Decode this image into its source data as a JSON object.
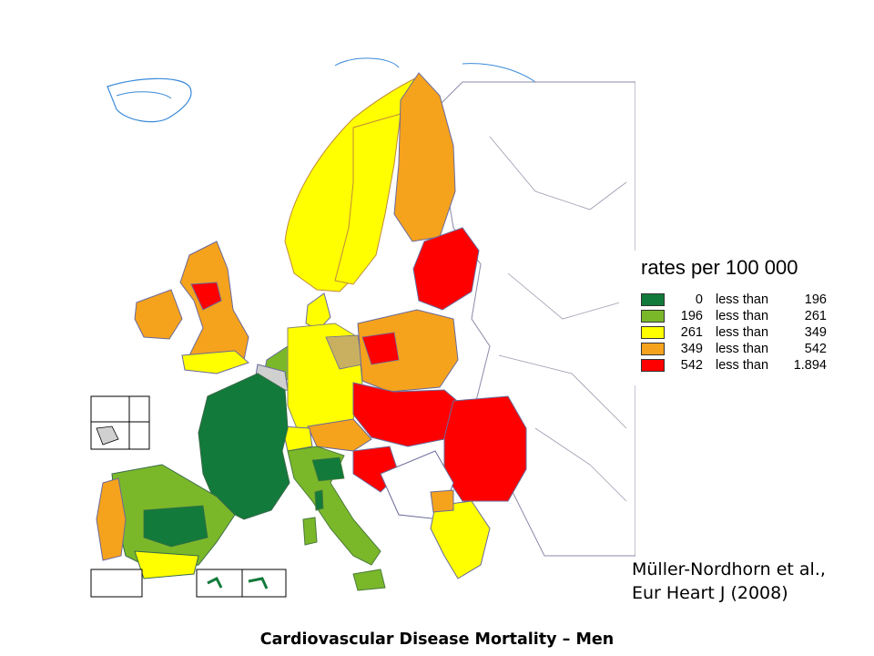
{
  "legend": {
    "title": "rates per 100 000",
    "rows": [
      {
        "from": "0",
        "sep": "less than",
        "to": "196",
        "color": "#127a3a"
      },
      {
        "from": "196",
        "sep": "less than",
        "to": "261",
        "color": "#7ab82a"
      },
      {
        "from": "261",
        "sep": "less than",
        "to": "349",
        "color": "#ffff00"
      },
      {
        "from": "349",
        "sep": "less than",
        "to": "542",
        "color": "#f5a21d"
      },
      {
        "from": "542",
        "sep": "less than",
        "to": "1.894",
        "color": "#ff0000"
      }
    ]
  },
  "citation": {
    "line1": "Müller-Nordhorn et al.,",
    "line2": "Eur Heart J (2008)"
  },
  "caption": "Cardiovascular Disease Mortality – Men",
  "colors": {
    "no_data": "#ffffff",
    "no_data_gray": "#d0d0d0",
    "water_outline": "#3a8ad8",
    "region_border": "#6a6a9a"
  }
}
